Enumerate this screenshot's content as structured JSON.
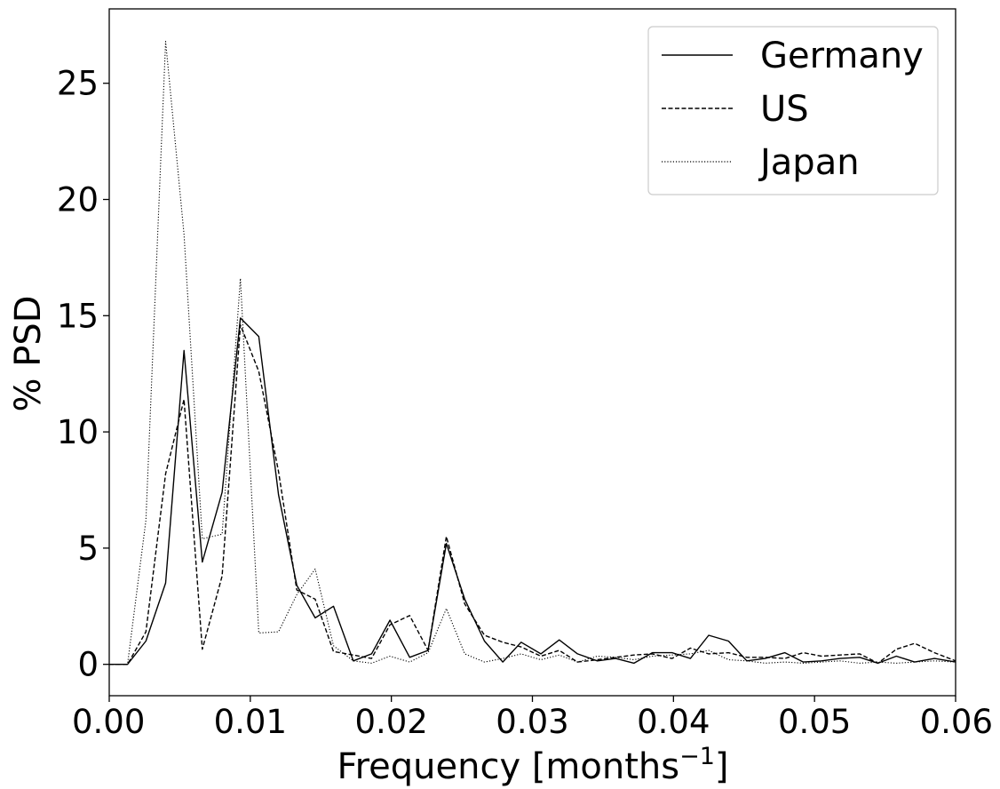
{
  "chart_data": {
    "type": "line",
    "xlabel": "Frequency [months",
    "xlabel_superscript": "−1",
    "xlabel_suffix": "]",
    "ylabel": "% PSD",
    "xlim": [
      0.0,
      0.06
    ],
    "ylim": [
      -1.35,
      28.2
    ],
    "xticks": [
      0.0,
      0.01,
      0.02,
      0.03,
      0.04,
      0.05,
      0.06
    ],
    "xtick_labels": [
      "0.00",
      "0.01",
      "0.02",
      "0.03",
      "0.04",
      "0.05",
      "0.06"
    ],
    "yticks": [
      0,
      5,
      10,
      15,
      20,
      25
    ],
    "ytick_labels": [
      "0",
      "5",
      "10",
      "15",
      "20",
      "25"
    ],
    "grid": false,
    "legend_position": "top-right",
    "series": [
      {
        "name": "Germany",
        "color": "#000000",
        "dash": "solid",
        "points": [
          [
            0.0,
            0
          ],
          [
            0.0013,
            0
          ],
          [
            0.0026,
            1
          ],
          [
            0.004,
            3.5
          ],
          [
            0.0053,
            13.5
          ],
          [
            0.0066,
            4.4
          ],
          [
            0.008,
            7.4
          ],
          [
            0.0093,
            14.9
          ],
          [
            0.0106,
            14.1
          ],
          [
            0.012,
            7.3
          ],
          [
            0.0133,
            3.4
          ],
          [
            0.0146,
            2.0
          ],
          [
            0.0159,
            2.5
          ],
          [
            0.0173,
            0.15
          ],
          [
            0.0186,
            0.45
          ],
          [
            0.0199,
            1.9
          ],
          [
            0.0213,
            0.3
          ],
          [
            0.0226,
            0.6
          ],
          [
            0.0239,
            5.2
          ],
          [
            0.0252,
            2.8
          ],
          [
            0.0266,
            1.0
          ],
          [
            0.0279,
            0.1
          ],
          [
            0.0292,
            0.95
          ],
          [
            0.0306,
            0.45
          ],
          [
            0.0319,
            1.05
          ],
          [
            0.0332,
            0.45
          ],
          [
            0.0346,
            0.15
          ],
          [
            0.0359,
            0.25
          ],
          [
            0.0372,
            0.05
          ],
          [
            0.0385,
            0.5
          ],
          [
            0.0399,
            0.5
          ],
          [
            0.0412,
            0.25
          ],
          [
            0.0425,
            1.25
          ],
          [
            0.0439,
            1.0
          ],
          [
            0.0452,
            0.15
          ],
          [
            0.0465,
            0.25
          ],
          [
            0.0479,
            0.5
          ],
          [
            0.0492,
            0.1
          ],
          [
            0.0505,
            0.15
          ],
          [
            0.0518,
            0.25
          ],
          [
            0.0532,
            0.3
          ],
          [
            0.0545,
            0.05
          ],
          [
            0.0558,
            0.35
          ],
          [
            0.0571,
            0.1
          ],
          [
            0.0585,
            0.25
          ],
          [
            0.06,
            0.1
          ]
        ]
      },
      {
        "name": "US",
        "color": "#000000",
        "dash": "dashed",
        "points": [
          [
            0.0,
            0
          ],
          [
            0.0013,
            0
          ],
          [
            0.0026,
            1.4
          ],
          [
            0.004,
            8.2
          ],
          [
            0.0053,
            11.4
          ],
          [
            0.0066,
            0.65
          ],
          [
            0.008,
            3.8
          ],
          [
            0.0093,
            14.6
          ],
          [
            0.0106,
            12.6
          ],
          [
            0.012,
            8.3
          ],
          [
            0.0133,
            3.2
          ],
          [
            0.0146,
            2.8
          ],
          [
            0.0159,
            0.55
          ],
          [
            0.0173,
            0.4
          ],
          [
            0.0186,
            0.25
          ],
          [
            0.0199,
            1.7
          ],
          [
            0.0213,
            2.1
          ],
          [
            0.0226,
            0.6
          ],
          [
            0.0239,
            5.5
          ],
          [
            0.0252,
            2.6
          ],
          [
            0.0266,
            1.25
          ],
          [
            0.0279,
            0.95
          ],
          [
            0.0292,
            0.75
          ],
          [
            0.0306,
            0.35
          ],
          [
            0.0319,
            0.6
          ],
          [
            0.0332,
            0.1
          ],
          [
            0.0346,
            0.2
          ],
          [
            0.0359,
            0.3
          ],
          [
            0.0372,
            0.4
          ],
          [
            0.0385,
            0.45
          ],
          [
            0.0399,
            0.25
          ],
          [
            0.0412,
            0.7
          ],
          [
            0.0425,
            0.45
          ],
          [
            0.0439,
            0.5
          ],
          [
            0.0452,
            0.3
          ],
          [
            0.0465,
            0.3
          ],
          [
            0.0479,
            0.25
          ],
          [
            0.0492,
            0.5
          ],
          [
            0.0505,
            0.35
          ],
          [
            0.0518,
            0.4
          ],
          [
            0.0532,
            0.45
          ],
          [
            0.0545,
            0.05
          ],
          [
            0.0558,
            0.65
          ],
          [
            0.0571,
            0.9
          ],
          [
            0.0585,
            0.5
          ],
          [
            0.06,
            0.15
          ]
        ]
      },
      {
        "name": "Japan",
        "color": "#000000",
        "dash": "dotted",
        "points": [
          [
            0.0,
            0
          ],
          [
            0.0013,
            0
          ],
          [
            0.0026,
            6.2
          ],
          [
            0.004,
            26.8
          ],
          [
            0.0053,
            18.5
          ],
          [
            0.0066,
            5.4
          ],
          [
            0.008,
            5.6
          ],
          [
            0.0093,
            16.6
          ],
          [
            0.0106,
            1.35
          ],
          [
            0.012,
            1.4
          ],
          [
            0.0133,
            3.0
          ],
          [
            0.0146,
            4.1
          ],
          [
            0.0159,
            0.8
          ],
          [
            0.0173,
            0.15
          ],
          [
            0.0186,
            0.05
          ],
          [
            0.0199,
            0.35
          ],
          [
            0.0213,
            0.1
          ],
          [
            0.0226,
            0.5
          ],
          [
            0.0239,
            2.4
          ],
          [
            0.0252,
            0.45
          ],
          [
            0.0266,
            0.1
          ],
          [
            0.0279,
            0.25
          ],
          [
            0.0292,
            0.45
          ],
          [
            0.0306,
            0.2
          ],
          [
            0.0319,
            0.4
          ],
          [
            0.0332,
            0.1
          ],
          [
            0.0346,
            0.35
          ],
          [
            0.0359,
            0.3
          ],
          [
            0.0372,
            0.2
          ],
          [
            0.0385,
            0.35
          ],
          [
            0.0399,
            0.4
          ],
          [
            0.0412,
            0.45
          ],
          [
            0.0425,
            0.6
          ],
          [
            0.0439,
            0.2
          ],
          [
            0.0452,
            0.15
          ],
          [
            0.0465,
            0.05
          ],
          [
            0.0479,
            0.1
          ],
          [
            0.0492,
            0.05
          ],
          [
            0.0505,
            0.1
          ],
          [
            0.0518,
            0.15
          ],
          [
            0.0532,
            0.05
          ],
          [
            0.0545,
            0.1
          ],
          [
            0.0558,
            0.05
          ],
          [
            0.0571,
            0.1
          ],
          [
            0.0585,
            0.15
          ],
          [
            0.06,
            0.1
          ]
        ]
      }
    ]
  }
}
